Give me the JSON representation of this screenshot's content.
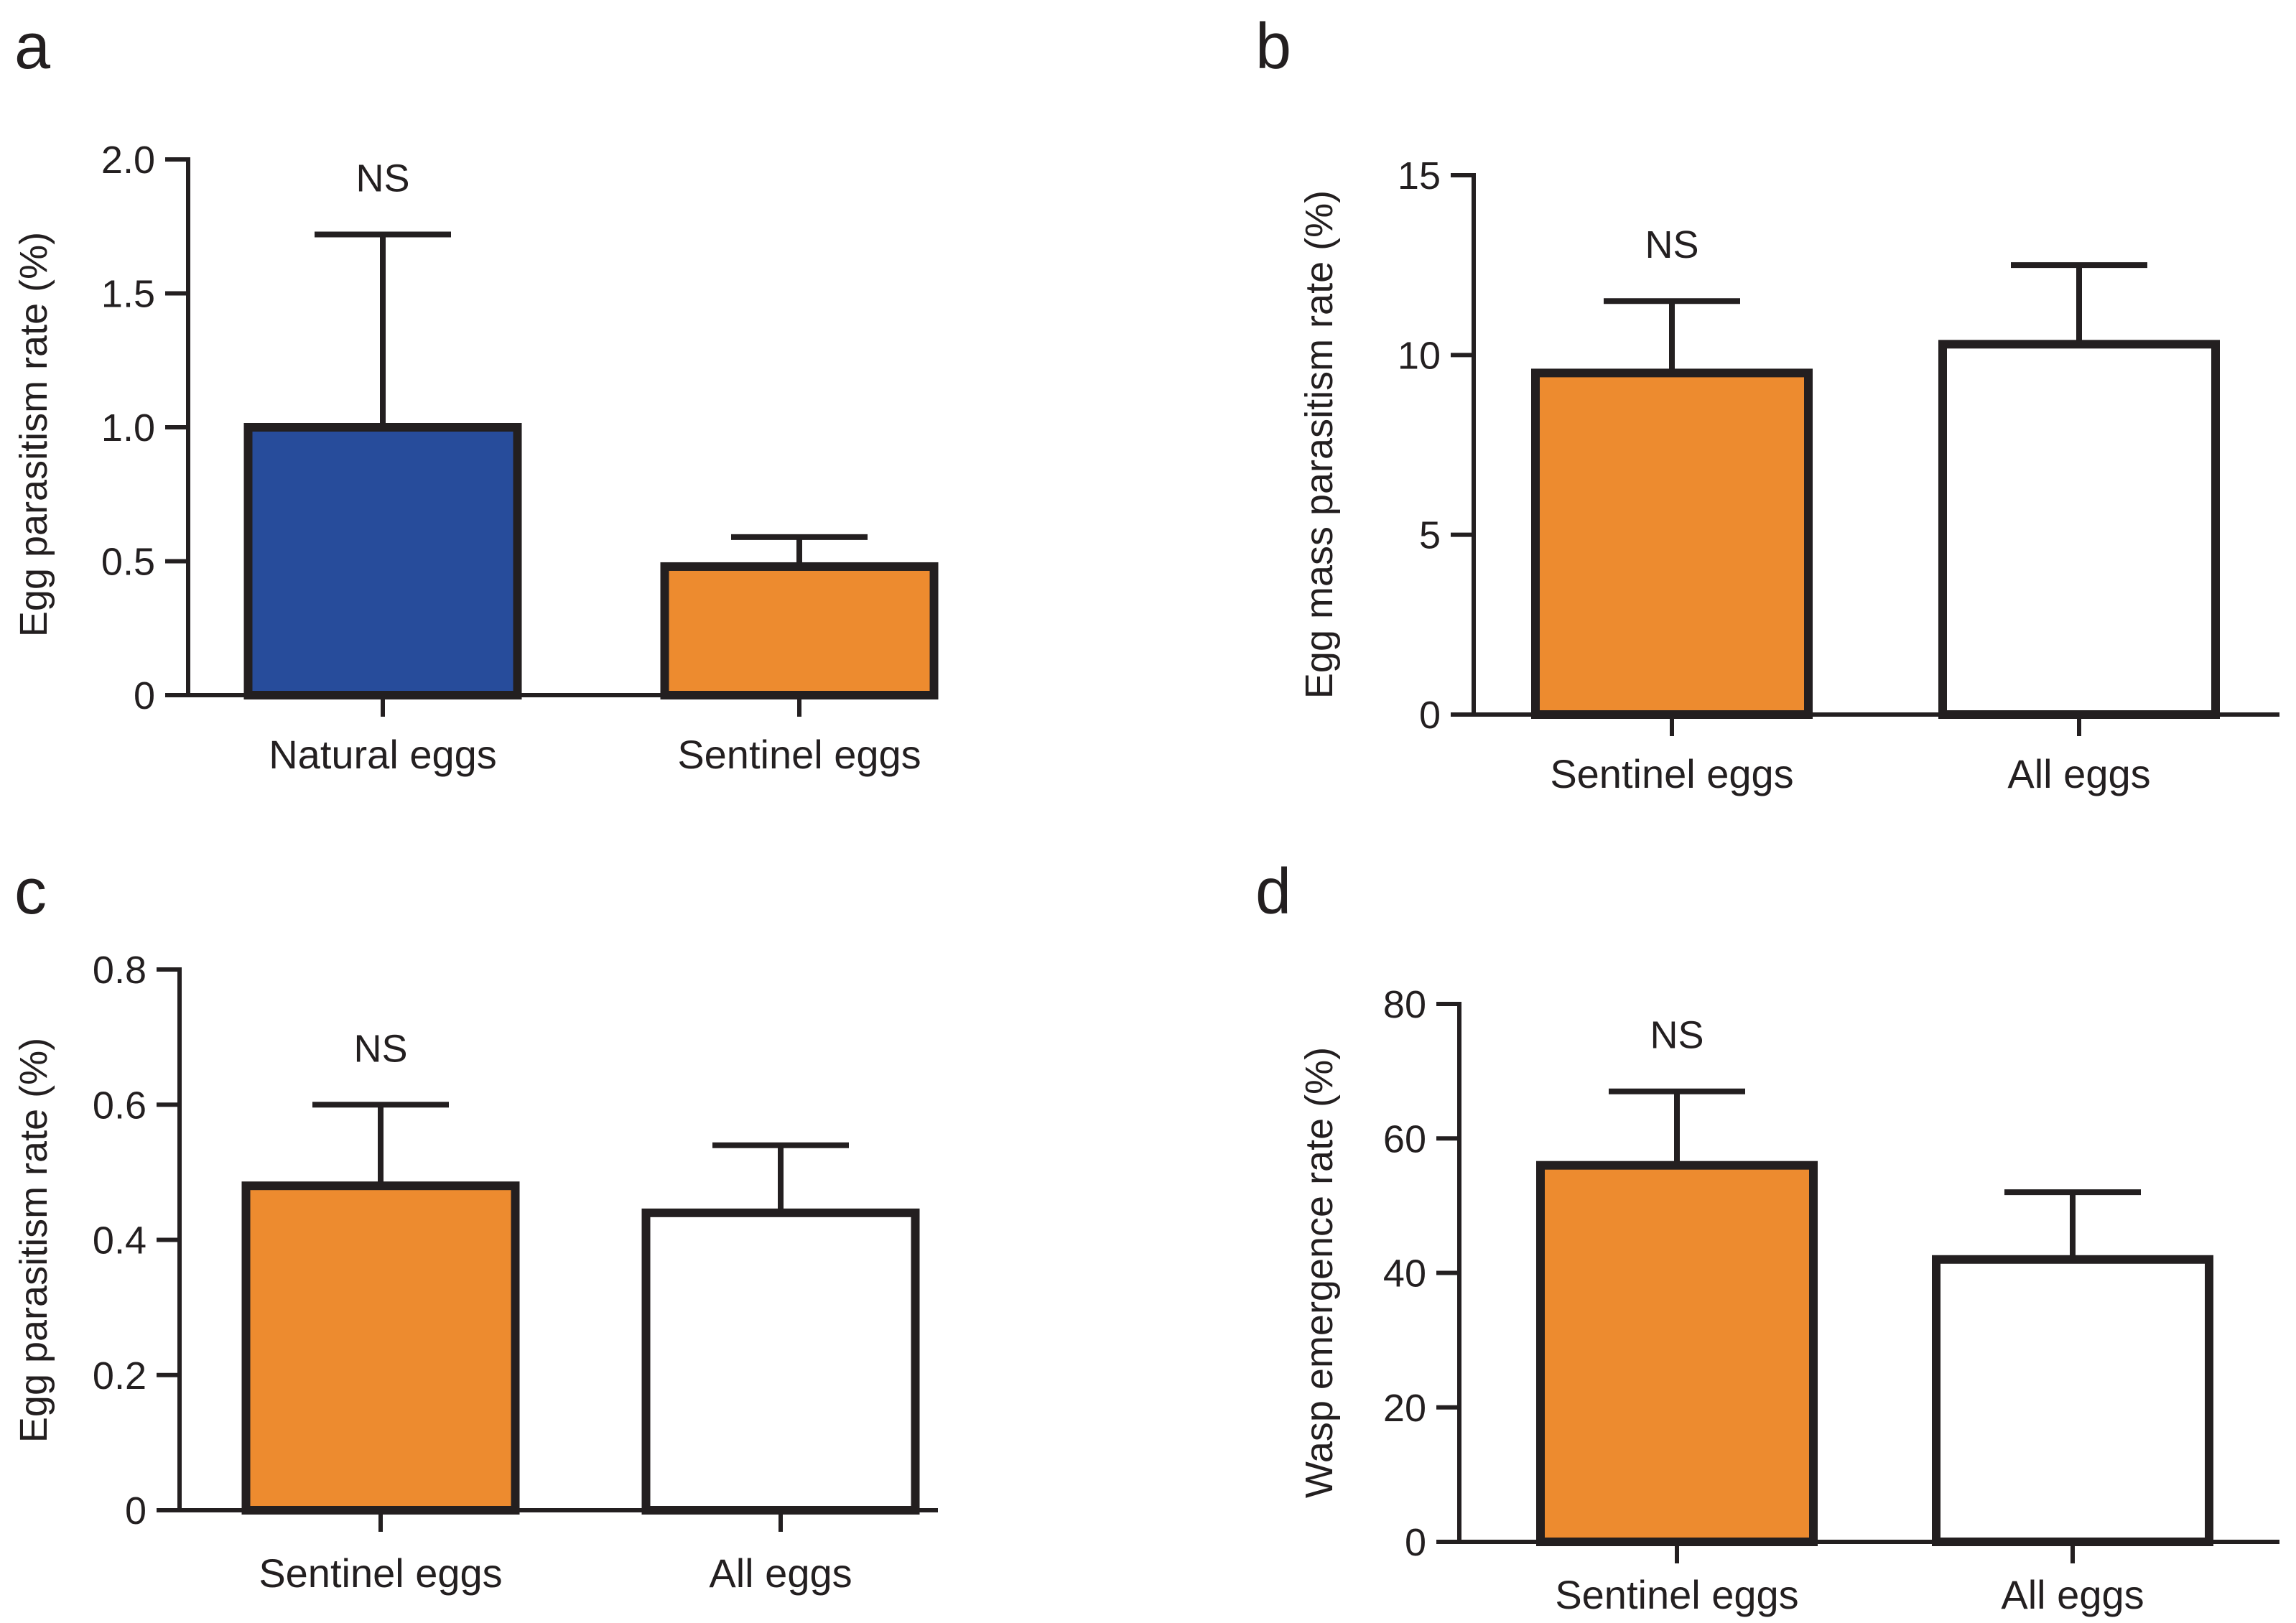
{
  "chart_data": [
    {
      "panel": "a",
      "type": "bar",
      "ylabel": "Egg parasitism rate (%)",
      "ylim": [
        0,
        2.0
      ],
      "yticks": [
        "0",
        "0.5",
        "1.0",
        "1.5",
        "2.0"
      ],
      "categories": [
        "Natural eggs",
        "Sentinel eggs"
      ],
      "values": [
        1.0,
        0.48
      ],
      "errors": [
        0.72,
        0.11
      ],
      "colors": [
        "#274c9b",
        "#ed8b2f"
      ],
      "annotation": "NS"
    },
    {
      "panel": "b",
      "type": "bar",
      "ylabel": "Egg mass parasitism rate (%)",
      "ylim": [
        0,
        15
      ],
      "yticks": [
        "0",
        "5",
        "10",
        "15"
      ],
      "categories": [
        "Sentinel eggs",
        "All eggs"
      ],
      "values": [
        9.5,
        10.3
      ],
      "errors": [
        2.0,
        2.2
      ],
      "colors": [
        "#ed8b2f",
        "#ffffff"
      ],
      "annotation": "NS"
    },
    {
      "panel": "c",
      "type": "bar",
      "ylabel": "Egg parasitism rate (%)",
      "ylim": [
        0,
        0.8
      ],
      "yticks": [
        "0",
        "0.2",
        "0.4",
        "0.6",
        "0.8"
      ],
      "categories": [
        "Sentinel eggs",
        "All eggs"
      ],
      "values": [
        0.48,
        0.44
      ],
      "errors": [
        0.12,
        0.1
      ],
      "colors": [
        "#ed8b2f",
        "#ffffff"
      ],
      "annotation": "NS"
    },
    {
      "panel": "d",
      "type": "bar",
      "ylabel": "Wasp emergence rate (%)",
      "ylim": [
        0,
        80
      ],
      "yticks": [
        "0",
        "20",
        "40",
        "60",
        "80"
      ],
      "categories": [
        "Sentinel eggs",
        "All eggs"
      ],
      "values": [
        56,
        42
      ],
      "errors": [
        11,
        10
      ],
      "colors": [
        "#ed8b2f",
        "#ffffff"
      ],
      "annotation": "NS"
    }
  ]
}
